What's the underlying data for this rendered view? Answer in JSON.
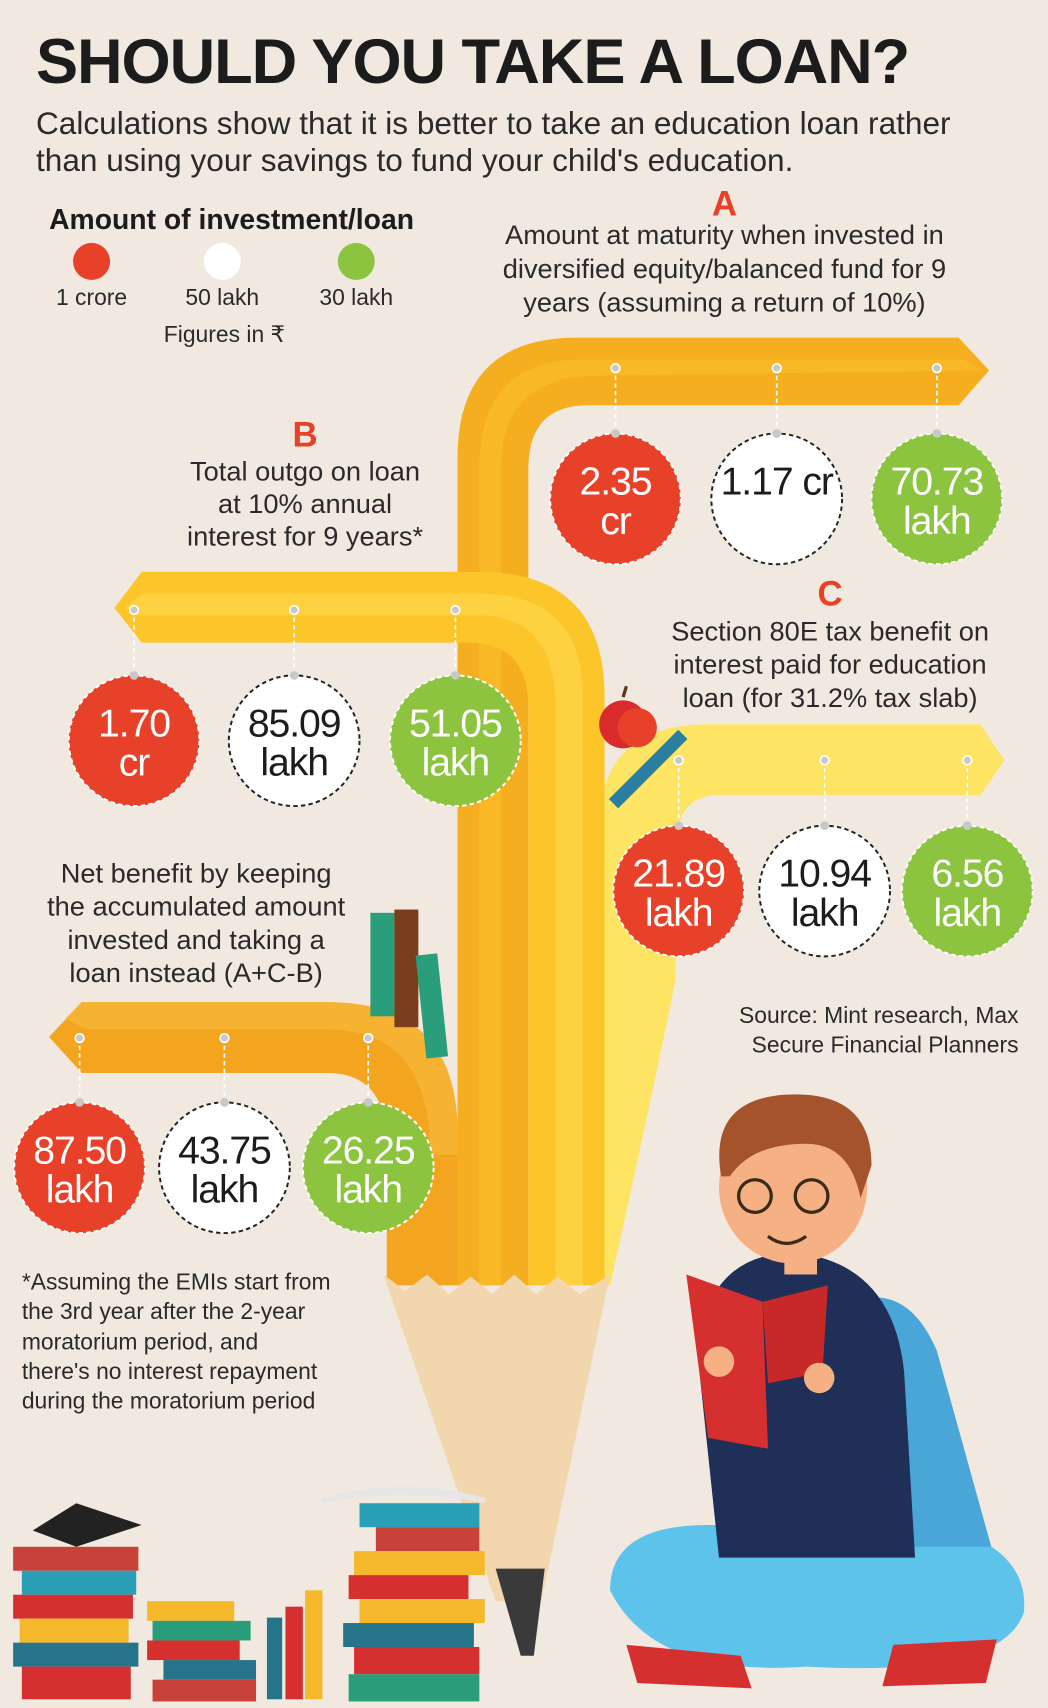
{
  "title": "SHOULD YOU TAKE A LOAN?",
  "subtitle": [
    "Calculations show that it is better to take an education loan rather",
    "than using your savings to fund your child's education."
  ],
  "legend": {
    "title": "Amount of investment/loan",
    "items": [
      {
        "label": "1 crore",
        "color": "#e8412a"
      },
      {
        "label": "50 lakh",
        "color": "#ffffff"
      },
      {
        "label": "30 lakh",
        "color": "#8cc43f"
      }
    ],
    "note": "Figures in ₹"
  },
  "sections": {
    "A": {
      "letter": "A",
      "lines": [
        "Amount at maturity when invested in",
        "diversified equity/balanced fund for 9",
        "years (assuming a return of 10%)"
      ],
      "values": [
        [
          "2.35",
          "cr"
        ],
        [
          "1.17 cr",
          ""
        ],
        [
          "70.73",
          "lakh"
        ]
      ]
    },
    "B": {
      "letter": "B",
      "lines": [
        "Total outgo on loan",
        "at 10% annual",
        "interest for 9 years*"
      ],
      "values": [
        [
          "1.70",
          "cr"
        ],
        [
          "85.09",
          "lakh"
        ],
        [
          "51.05",
          "lakh"
        ]
      ]
    },
    "C": {
      "letter": "C",
      "lines": [
        "Section 80E tax benefit on",
        "interest paid for education",
        "loan (for 31.2% tax slab)"
      ],
      "values": [
        [
          "21.89",
          "lakh"
        ],
        [
          "10.94",
          "lakh"
        ],
        [
          "6.56",
          "lakh"
        ]
      ]
    },
    "D": {
      "letter": "",
      "lines": [
        "Net benefit by keeping",
        "the accumulated amount",
        "invested and taking a",
        "loan instead (A+C-B)"
      ],
      "values": [
        [
          "87.50",
          "lakh"
        ],
        [
          "43.75",
          "lakh"
        ],
        [
          "26.25",
          "lakh"
        ]
      ]
    }
  },
  "source": [
    "Source: Mint research, Max",
    "Secure Financial Planners"
  ],
  "footnote": [
    "*Assuming the EMIs start from",
    "the 3rd year after the 2-year",
    "moratorium period, and",
    "there's no interest repayment",
    "during the moratorium period"
  ],
  "colors": {
    "red": "#e8412a",
    "white": "#ffffff",
    "green": "#8cc43f",
    "background": "#f1e9e0",
    "accent": "#e8412a"
  }
}
